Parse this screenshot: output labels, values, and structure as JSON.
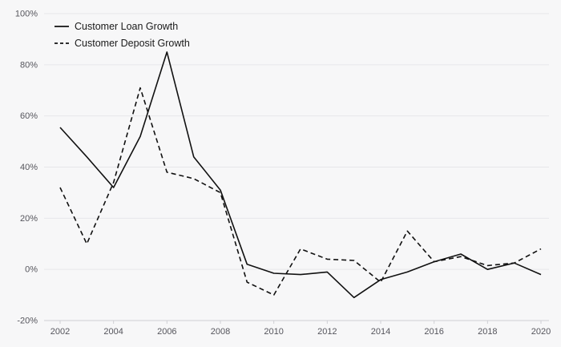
{
  "chart_data": {
    "type": "line",
    "title": "",
    "xlabel": "",
    "ylabel": "",
    "x": [
      2002,
      2003,
      2004,
      2005,
      2006,
      2007,
      2008,
      2009,
      2010,
      2011,
      2012,
      2013,
      2014,
      2015,
      2016,
      2017,
      2018,
      2019,
      2020
    ],
    "series": [
      {
        "name": "Customer Loan Growth",
        "style": "solid",
        "values": [
          55.5,
          44,
          32,
          52,
          85,
          44,
          31,
          2,
          -1.5,
          -2,
          -1,
          -11,
          -4,
          -1,
          3,
          6,
          0,
          2.5,
          -2
        ]
      },
      {
        "name": "Customer Deposit Growth",
        "style": "dashed",
        "values": [
          32,
          10,
          34,
          71,
          38,
          35.5,
          30,
          -5,
          -10,
          8,
          4,
          3.5,
          -5,
          15,
          3,
          5,
          1.5,
          2.5,
          8
        ]
      }
    ],
    "ylim": [
      -20,
      100
    ],
    "yticks": [
      -20,
      0,
      20,
      40,
      60,
      80,
      100
    ],
    "ytick_suffix": "%",
    "xticks": [
      2002,
      2004,
      2006,
      2008,
      2010,
      2012,
      2014,
      2016,
      2018,
      2020
    ],
    "grid": true,
    "legend_position": "top-left",
    "colors": {
      "line": "#111111",
      "grid": "#e7e7ea",
      "axis": "#cfcfd4",
      "tick_text": "#55555c",
      "background": "#f7f7f8"
    }
  }
}
